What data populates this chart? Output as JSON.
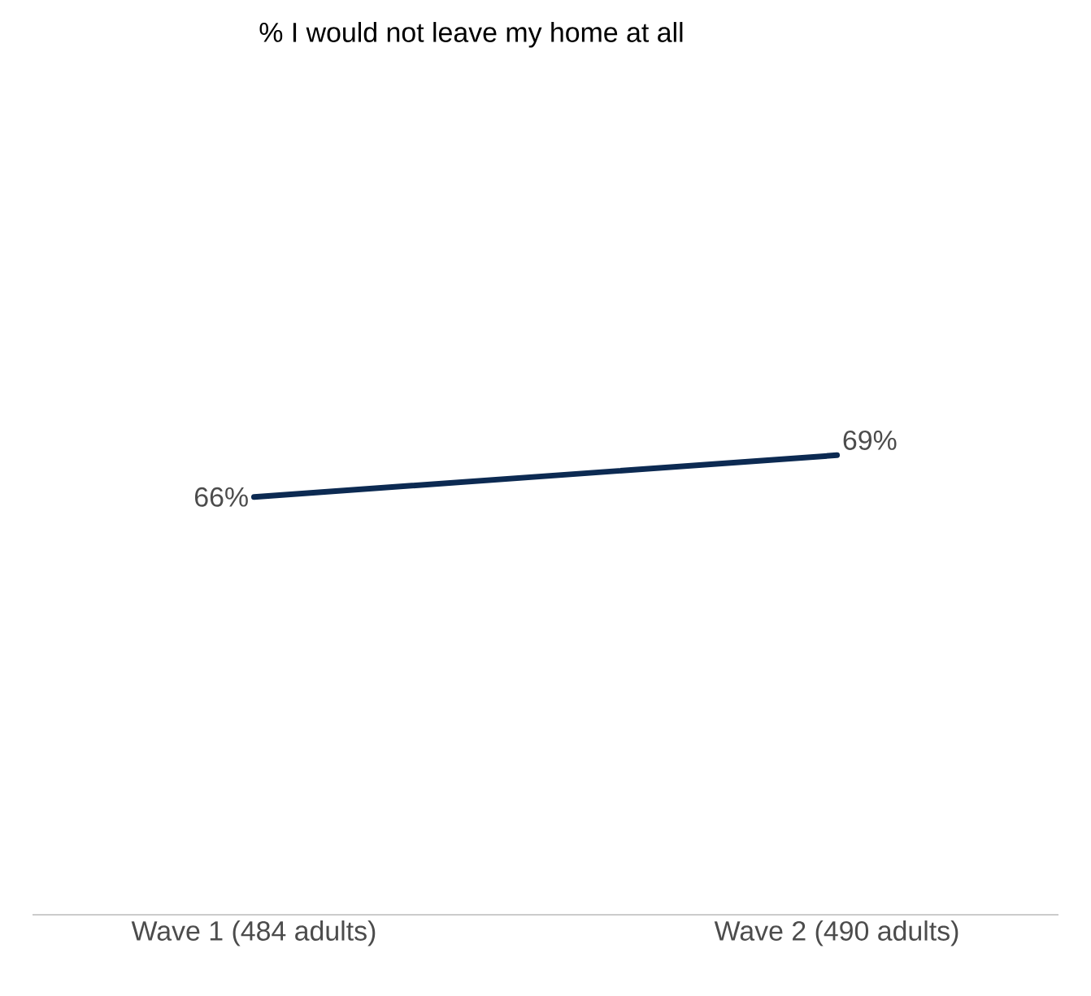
{
  "chart_data": {
    "type": "line",
    "title": "% I would not leave my home at all",
    "categories": [
      "Wave 1 (484 adults)",
      "Wave 2 (490 adults)"
    ],
    "series": [
      {
        "color": "#0c2a52",
        "values": [
          66,
          69
        ],
        "value_labels": [
          "66%",
          "69%"
        ]
      }
    ],
    "tick_labels": "x"
  }
}
